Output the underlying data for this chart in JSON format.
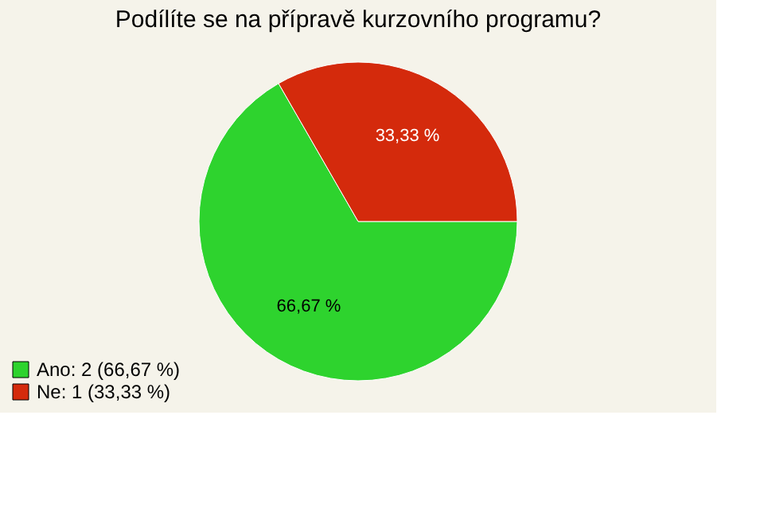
{
  "chart_data": {
    "type": "pie",
    "title": "Podílíte se na přípravě kurzovního programu?",
    "categories": [
      "Ano: 2 (66,67 %)",
      "Ne: 1 (33,33 %)"
    ],
    "values": [
      66.67,
      33.33
    ],
    "colors": [
      "#2ed32e",
      "#d42a0c"
    ],
    "value_labels": [
      "66,67 %",
      "33,33 %"
    ],
    "legend": "bottom left"
  }
}
